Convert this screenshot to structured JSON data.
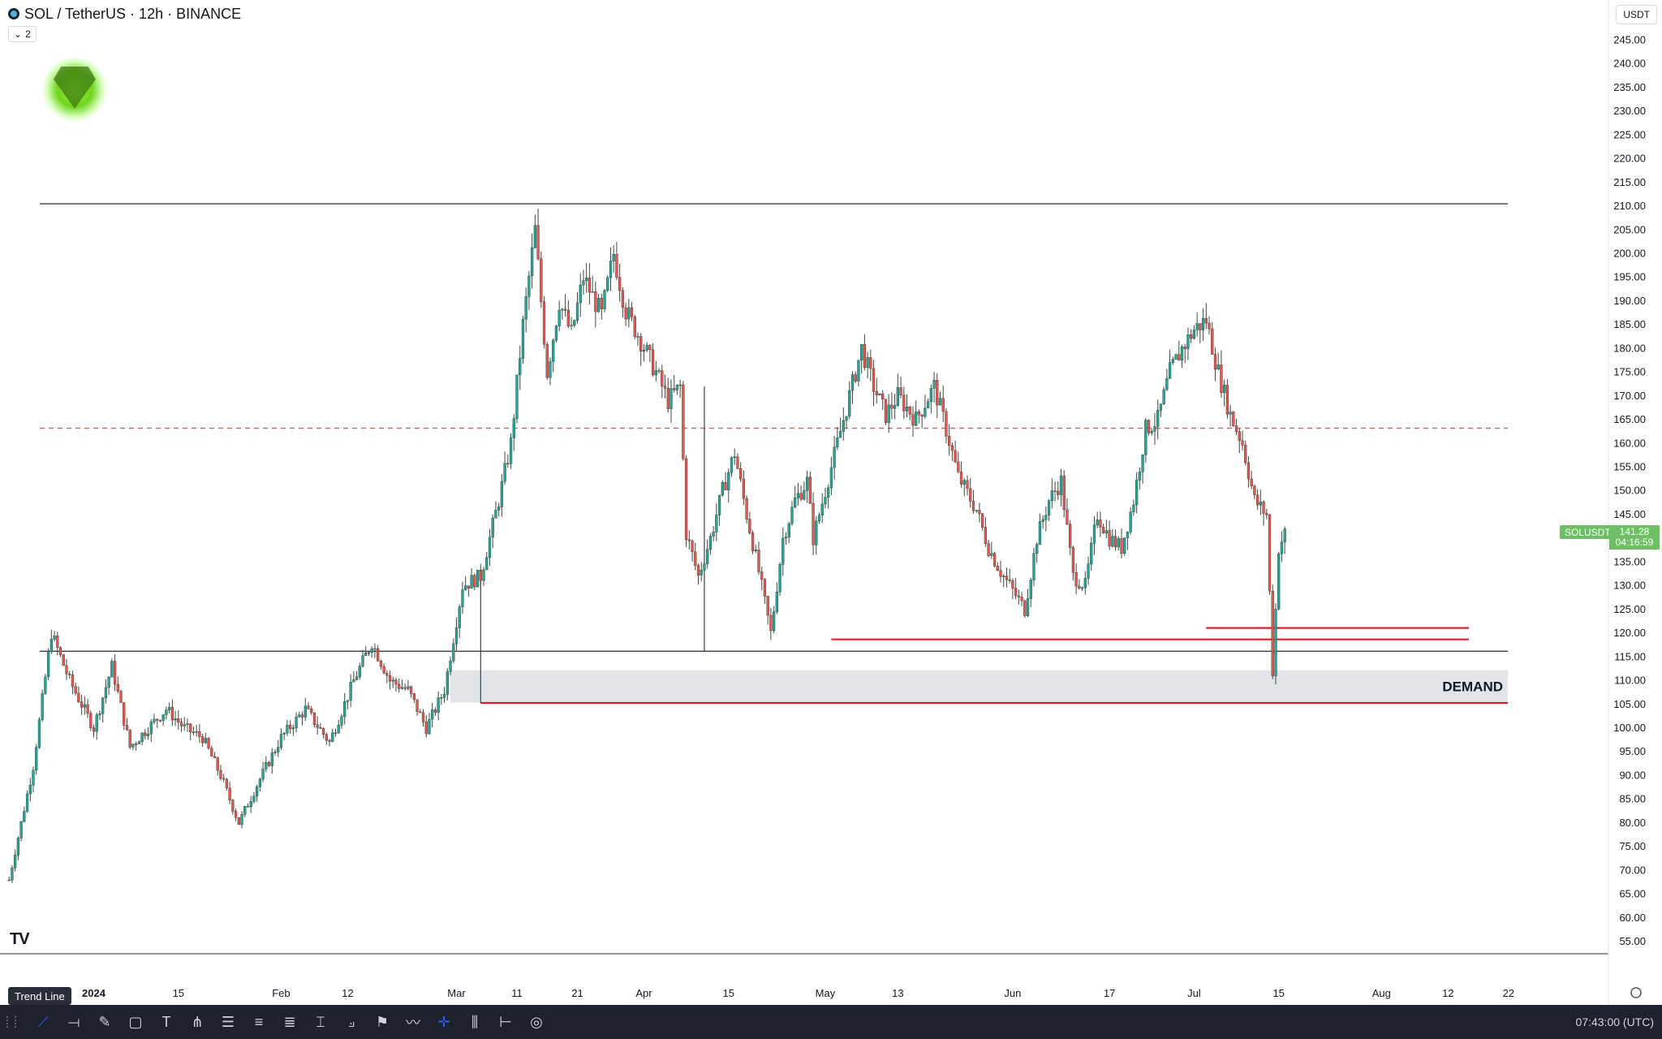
{
  "header": {
    "symbol": "SOL / TetherUS · 12h · BINANCE",
    "indicator_count": "2",
    "currency": "USDT"
  },
  "annotation": {
    "demand_label": "DEMAND"
  },
  "price_tag": {
    "symbol": "SOLUSDT",
    "price": "141.28",
    "countdown": "04:16:59"
  },
  "tooltip": "Trend Line",
  "status": {
    "time": "07:43:00 (UTC)"
  },
  "toolbar": {
    "tools": [
      "trend-line-icon",
      "ray-icon",
      "brush-icon",
      "rectangle-icon",
      "text-icon",
      "pitchfork-icon",
      "fib-icon",
      "channel-icon",
      "gann-icon",
      "pattern-icon",
      "path-icon",
      "flag-icon",
      "zigzag-icon",
      "crosshair-icon",
      "candle-tool-icon",
      "measure-icon",
      "magnet-icon"
    ]
  },
  "colors": {
    "up": "#26a69a",
    "down": "#ef5350",
    "candle": "#3d4a3d",
    "red_line": "#e01e2b",
    "dashed": "#ef5350",
    "demand_zone": "#e3e3ea",
    "tag": "#6cbf62"
  },
  "chart_data": {
    "type": "candlestick",
    "title": "SOL / TetherUS",
    "ylim": [
      55,
      245
    ],
    "y_ticks": [
      55,
      60,
      65,
      70,
      75,
      80,
      85,
      90,
      95,
      100,
      105,
      110,
      115,
      120,
      125,
      130,
      135,
      140,
      145,
      150,
      155,
      160,
      165,
      170,
      175,
      180,
      185,
      190,
      195,
      200,
      205,
      210,
      215,
      220,
      225,
      230,
      235,
      240,
      245
    ],
    "x_ticks": [
      {
        "day": 0,
        "label": "2024"
      },
      {
        "day": 14,
        "label": "15"
      },
      {
        "day": 31,
        "label": "Feb"
      },
      {
        "day": 42,
        "label": "12"
      },
      {
        "day": 60,
        "label": "Mar"
      },
      {
        "day": 70,
        "label": "11"
      },
      {
        "day": 80,
        "label": "21"
      },
      {
        "day": 91,
        "label": "Apr"
      },
      {
        "day": 105,
        "label": "15"
      },
      {
        "day": 121,
        "label": "May"
      },
      {
        "day": 133,
        "label": "13"
      },
      {
        "day": 152,
        "label": "Jun"
      },
      {
        "day": 168,
        "label": "17"
      },
      {
        "day": 182,
        "label": "Jul"
      },
      {
        "day": 196,
        "label": "15"
      },
      {
        "day": 213,
        "label": "Aug"
      },
      {
        "day": 224,
        "label": "12"
      },
      {
        "day": 234,
        "label": "22"
      }
    ],
    "price_path": [
      [
        -14,
        68
      ],
      [
        -10,
        92
      ],
      [
        -7,
        120
      ],
      [
        -4,
        110
      ],
      [
        0,
        100
      ],
      [
        3,
        113
      ],
      [
        6,
        96
      ],
      [
        9,
        100
      ],
      [
        12,
        104
      ],
      [
        15,
        100
      ],
      [
        18,
        98
      ],
      [
        21,
        90
      ],
      [
        24,
        80
      ],
      [
        27,
        88
      ],
      [
        31,
        98
      ],
      [
        35,
        104
      ],
      [
        39,
        97
      ],
      [
        43,
        110
      ],
      [
        46,
        118
      ],
      [
        49,
        110
      ],
      [
        52,
        108
      ],
      [
        55,
        100
      ],
      [
        58,
        108
      ],
      [
        61,
        130
      ],
      [
        64,
        132
      ],
      [
        67,
        148
      ],
      [
        69,
        160
      ],
      [
        71,
        185
      ],
      [
        73,
        205
      ],
      [
        75,
        175
      ],
      [
        77,
        190
      ],
      [
        79,
        183
      ],
      [
        81,
        195
      ],
      [
        84,
        187
      ],
      [
        86,
        200
      ],
      [
        88,
        188
      ],
      [
        90,
        183
      ],
      [
        93,
        175
      ],
      [
        95,
        169
      ],
      [
        97,
        172
      ],
      [
        98,
        141
      ],
      [
        100,
        132
      ],
      [
        102,
        140
      ],
      [
        104,
        150
      ],
      [
        106,
        158
      ],
      [
        108,
        145
      ],
      [
        110,
        133
      ],
      [
        112,
        120
      ],
      [
        114,
        140
      ],
      [
        116,
        148
      ],
      [
        118,
        152
      ],
      [
        119,
        140
      ],
      [
        121,
        150
      ],
      [
        123,
        160
      ],
      [
        125,
        170
      ],
      [
        127,
        180
      ],
      [
        129,
        172
      ],
      [
        131,
        166
      ],
      [
        133,
        170
      ],
      [
        136,
        165
      ],
      [
        139,
        172
      ],
      [
        141,
        163
      ],
      [
        143,
        153
      ],
      [
        146,
        146
      ],
      [
        148,
        138
      ],
      [
        150,
        133
      ],
      [
        152,
        129
      ],
      [
        154,
        125
      ],
      [
        156,
        140
      ],
      [
        158,
        148
      ],
      [
        160,
        152
      ],
      [
        162,
        132
      ],
      [
        164,
        130
      ],
      [
        166,
        145
      ],
      [
        168,
        140
      ],
      [
        170,
        138
      ],
      [
        172,
        148
      ],
      [
        174,
        163
      ],
      [
        176,
        165
      ],
      [
        178,
        175
      ],
      [
        180,
        180
      ],
      [
        182,
        184
      ],
      [
        184,
        186
      ],
      [
        186,
        175
      ],
      [
        188,
        166
      ],
      [
        190,
        160
      ],
      [
        192,
        148
      ],
      [
        194,
        145
      ],
      [
        195,
        112
      ],
      [
        196,
        138
      ],
      [
        197,
        141
      ]
    ],
    "levels": [
      {
        "kind": "solid",
        "price": 210.5
      },
      {
        "kind": "dashed",
        "price": 163.2
      },
      {
        "kind": "solid",
        "price": 116.2
      }
    ],
    "demand_zone": {
      "from": 105.4,
      "to": 112.2,
      "start_day": 59,
      "label": "DEMAND"
    },
    "red_rays": [
      {
        "price": 105.3,
        "start_day": 64
      },
      {
        "price": 118.7,
        "start_day": 122
      },
      {
        "price": 121.1,
        "start_day": 184
      }
    ],
    "vertical_wicks": [
      {
        "day": 64,
        "from": 105.3,
        "to": 132
      },
      {
        "day": 101,
        "from": 116.2,
        "to": 172
      }
    ],
    "last_price": 141.28
  }
}
